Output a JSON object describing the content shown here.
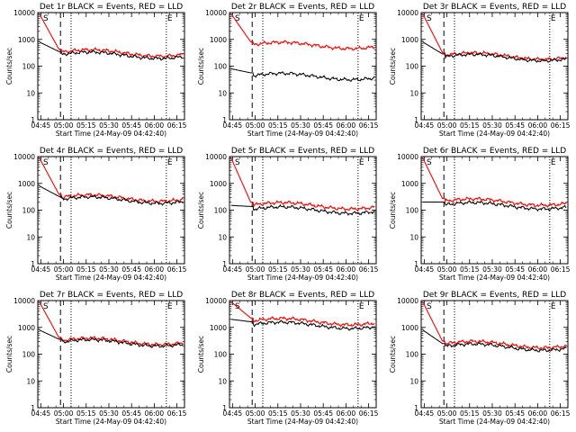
{
  "chart_data": {
    "type": "line",
    "layout": "3x3 grid",
    "shared": {
      "title_suffix": "BLACK = Events, RED = LLD",
      "ylabel": "Counts/sec",
      "xlabel": "Start Time (24-May-09 04:42:40)",
      "yscale": "log",
      "ylim": [
        1,
        10000
      ],
      "yticks": [
        1,
        10,
        100,
        1000,
        10000
      ],
      "xlim_minutes": [
        -2,
        95
      ],
      "xticks": [
        "04:45",
        "05:00",
        "05:15",
        "05:30",
        "05:45",
        "06:00",
        "06:15"
      ],
      "xtick_minutes": [
        0,
        15,
        30,
        45,
        60,
        75,
        90
      ],
      "dashed_marker_minute": 13,
      "dotted_marker_minutes": [
        20,
        83
      ],
      "corner_labels": [
        "S",
        "E"
      ],
      "corner_label_minutes": [
        1,
        83
      ],
      "series_colors": {
        "events": "#000000",
        "lld": "#ff0000"
      }
    },
    "panels": [
      {
        "title": "Det 1r",
        "events_level": 280,
        "lld_level": 340,
        "events_start": 800,
        "lld_start": 9000
      },
      {
        "title": "Det 2r",
        "events_level": 45,
        "lld_level": 650,
        "events_start": 80,
        "lld_start": 9000
      },
      {
        "title": "Det 3r",
        "events_level": 230,
        "lld_level": 260,
        "events_start": 800,
        "lld_start": 9000
      },
      {
        "title": "Det 4r",
        "events_level": 260,
        "lld_level": 310,
        "events_start": 800,
        "lld_start": 9000
      },
      {
        "title": "Det 5r",
        "events_level": 110,
        "lld_level": 160,
        "events_start": 150,
        "lld_start": 9000
      },
      {
        "title": "Det 6r",
        "events_level": 160,
        "lld_level": 220,
        "events_start": 200,
        "lld_start": 9000
      },
      {
        "title": "Det 7r",
        "events_level": 290,
        "lld_level": 330,
        "events_start": 800,
        "lld_start": 9000
      },
      {
        "title": "Det 8r",
        "events_level": 1300,
        "lld_level": 1800,
        "events_start": 2000,
        "lld_start": 9000
      },
      {
        "title": "Det 9r",
        "events_level": 200,
        "lld_level": 250,
        "events_start": 800,
        "lld_start": 9000
      }
    ]
  }
}
